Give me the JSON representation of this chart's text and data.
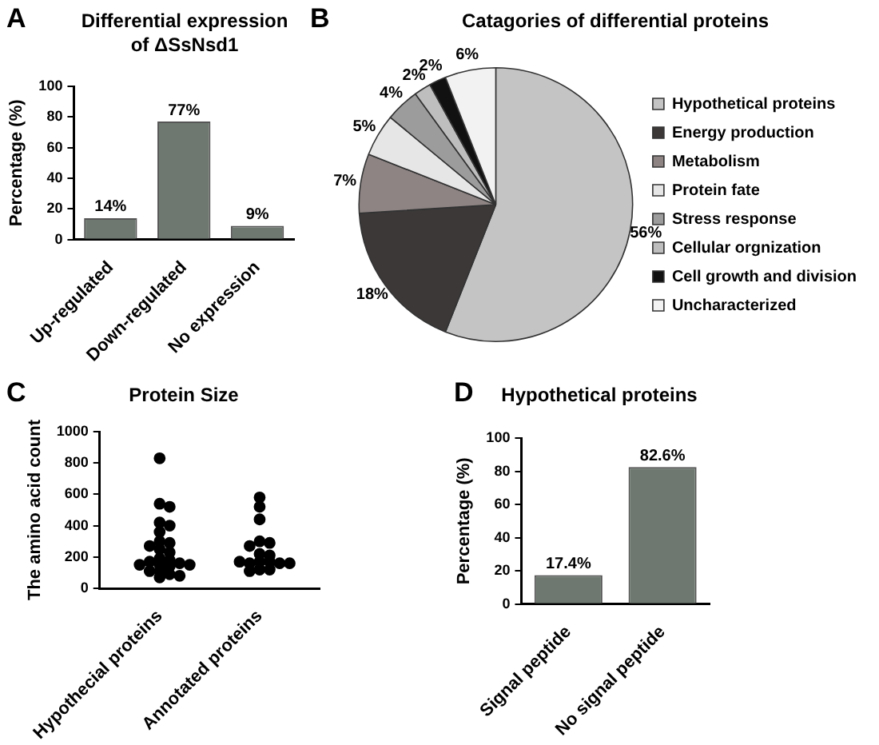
{
  "chart_data": [
    {
      "type": "bar",
      "title": "Differential expression of ΔSsNsd1",
      "ylabel": "Percentage (%)",
      "categories": [
        "Up-regulated",
        "Down-regulated",
        "No expression"
      ],
      "values": [
        14,
        77,
        9
      ],
      "value_labels": [
        "14%",
        "77%",
        "9%"
      ],
      "color": "#6e7870",
      "ylim": [
        0,
        100
      ],
      "yticks": [
        0,
        20,
        40,
        60,
        80,
        100
      ],
      "annotations": [
        "A"
      ]
    },
    {
      "type": "pie",
      "title": "Catagories of differential proteins",
      "categories": [
        "Hypothetical proteins",
        "Energy production",
        "Metabolism",
        "Protein fate",
        "Stress response",
        "Cellular orgnization",
        "Cell growth and division",
        "Uncharacterized"
      ],
      "values": [
        56,
        18,
        7,
        5,
        4,
        2,
        2,
        6
      ],
      "value_labels": [
        "56%",
        "18%",
        "7%",
        "5%",
        "4%",
        "2%",
        "2%",
        "6%"
      ],
      "colors": [
        "#c4c4c4",
        "#3c3838",
        "#8e8484",
        "#e6e6e6",
        "#9c9c9c",
        "#bebebe",
        "#111111",
        "#f2f2f2"
      ],
      "legend": "right",
      "annotations": [
        "B"
      ]
    },
    {
      "type": "scatter",
      "title": "Protein Size",
      "ylabel": "The amino acid count",
      "categories": [
        "Hypothecial proteins",
        "Annotated proteins"
      ],
      "marker": "circle",
      "ylim": [
        0,
        1000
      ],
      "yticks": [
        0,
        200,
        400,
        600,
        800,
        1000
      ],
      "annotations": [
        "C"
      ],
      "series": [
        {
          "color": "#000000",
          "x": [
            "Hypothecial proteins",
            "Hypothecial proteins",
            "Hypothecial proteins",
            "Hypothecial proteins",
            "Hypothecial proteins",
            "Hypothecial proteins",
            "Hypothecial proteins",
            "Hypothecial proteins",
            "Hypothecial proteins",
            "Hypothecial proteins",
            "Hypothecial proteins",
            "Hypothecial proteins",
            "Hypothecial proteins",
            "Hypothecial proteins",
            "Hypothecial proteins",
            "Hypothecial proteins",
            "Hypothecial proteins",
            "Hypothecial proteins",
            "Hypothecial proteins",
            "Hypothecial proteins",
            "Hypothecial proteins",
            "Hypothecial proteins",
            "Hypothecial proteins",
            "Hypothecial proteins"
          ],
          "values": [
            830,
            540,
            520,
            420,
            400,
            360,
            300,
            290,
            270,
            250,
            230,
            190,
            180,
            170,
            160,
            150,
            150,
            150,
            140,
            110,
            110,
            90,
            80,
            70
          ]
        },
        {
          "color": "#000000",
          "x": [
            "Annotated proteins",
            "Annotated proteins",
            "Annotated proteins",
            "Annotated proteins",
            "Annotated proteins",
            "Annotated proteins",
            "Annotated proteins",
            "Annotated proteins",
            "Annotated proteins",
            "Annotated proteins",
            "Annotated proteins",
            "Annotated proteins",
            "Annotated proteins",
            "Annotated proteins",
            "Annotated proteins",
            "Annotated proteins",
            "Annotated proteins"
          ],
          "values": [
            580,
            520,
            440,
            300,
            290,
            270,
            220,
            210,
            170,
            170,
            160,
            160,
            170,
            160,
            120,
            120,
            110
          ]
        }
      ]
    },
    {
      "type": "bar",
      "title": "Hypothetical proteins",
      "ylabel": "Percentage (%)",
      "categories": [
        "Signal peptide",
        "No signal peptide"
      ],
      "values": [
        17.4,
        82.6
      ],
      "value_labels": [
        "17.4%",
        "82.6%"
      ],
      "color": "#6e7870",
      "ylim": [
        0,
        100
      ],
      "yticks": [
        0,
        20,
        40,
        60,
        80,
        100
      ],
      "annotations": [
        "D"
      ]
    }
  ]
}
